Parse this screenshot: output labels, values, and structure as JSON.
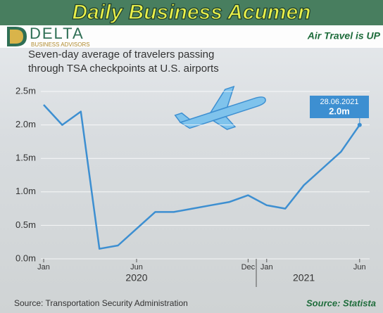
{
  "header": {
    "title": "Daily Business Acumen",
    "brand": "DELTA",
    "brand_sub": "BUSINESS ADVISORS",
    "tagline": "Air Travel is UP"
  },
  "chart_data": {
    "type": "line",
    "title": "Seven-day average of travelers passing through TSA checkpoints at U.S. airports",
    "x": [
      "2020-01",
      "2020-02",
      "2020-03",
      "2020-04",
      "2020-05",
      "2020-06",
      "2020-07",
      "2020-08",
      "2020-09",
      "2020-10",
      "2020-11",
      "2020-12",
      "2021-01",
      "2021-02",
      "2021-03",
      "2021-04",
      "2021-05",
      "2021-06"
    ],
    "series": [
      {
        "name": "Travelers",
        "color": "#3d8fd1",
        "values": [
          2.3,
          2.0,
          2.2,
          0.15,
          0.2,
          0.45,
          0.7,
          0.7,
          0.75,
          0.8,
          0.85,
          0.95,
          0.8,
          0.75,
          1.1,
          1.35,
          1.6,
          2.0
        ]
      }
    ],
    "ylim": [
      0,
      2.5
    ],
    "yticks": [
      {
        "value": 0,
        "label": "0.0m"
      },
      {
        "value": 0.5,
        "label": "0.5m"
      },
      {
        "value": 1,
        "label": "1.0m"
      },
      {
        "value": 1.5,
        "label": "1.5m"
      },
      {
        "value": 2,
        "label": "2.0m"
      },
      {
        "value": 2.5,
        "label": "2.5m"
      }
    ],
    "xticks": [
      {
        "value": "2020-01",
        "label": "Jan"
      },
      {
        "value": "2020-06",
        "label": "Jun"
      },
      {
        "value": "2020-12",
        "label": "Dec"
      },
      {
        "value": "2021-01",
        "label": "Jan"
      },
      {
        "value": "2021-06",
        "label": "Jun"
      }
    ],
    "year_labels": [
      {
        "value": "2020-06",
        "label": "2020"
      },
      {
        "value": "2021-03",
        "label": "2021"
      }
    ],
    "annotation": {
      "date": "28.06.2021",
      "value": 2.0,
      "label": "2.0m"
    },
    "grid": true
  },
  "footer": {
    "source": "Source: Transportation Security Administration",
    "credit": "Source: Statista"
  }
}
